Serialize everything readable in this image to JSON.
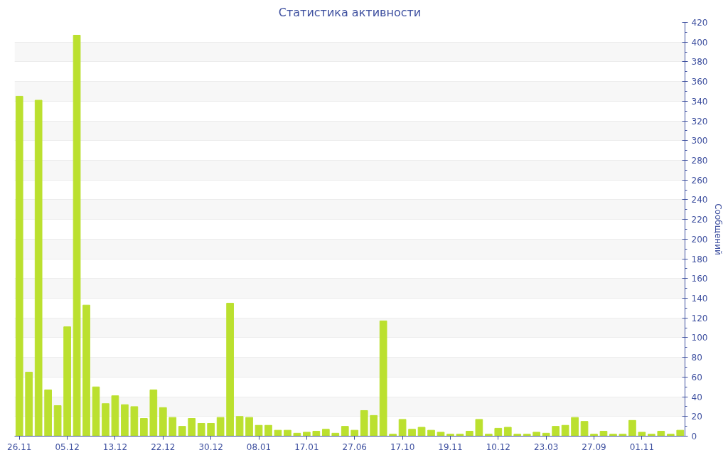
{
  "chart_data": {
    "type": "bar",
    "title": "Статистика активности",
    "ylabel": "Сообщений",
    "categories": [
      "26.11",
      null,
      null,
      null,
      null,
      "05.12",
      null,
      null,
      null,
      null,
      "13.12",
      null,
      null,
      null,
      null,
      "22.12",
      null,
      null,
      null,
      null,
      "30.12",
      null,
      null,
      null,
      null,
      "08.01",
      null,
      null,
      null,
      null,
      "17.01",
      null,
      null,
      null,
      null,
      "27.06",
      null,
      null,
      null,
      null,
      "17.10",
      null,
      null,
      null,
      null,
      "19.11",
      null,
      null,
      null,
      null,
      "10.12",
      null,
      null,
      null,
      null,
      "23.03",
      null,
      null,
      null,
      null,
      "27.09",
      null,
      null,
      null,
      null,
      "01.11",
      null,
      null,
      null,
      null
    ],
    "values": [
      345,
      65,
      341,
      47,
      31,
      111,
      407,
      133,
      50,
      33,
      41,
      32,
      30,
      18,
      47,
      29,
      19,
      10,
      18,
      13,
      13,
      19,
      135,
      20,
      19,
      11,
      11,
      6,
      6,
      3,
      4,
      5,
      7,
      3,
      10,
      6,
      26,
      21,
      117,
      2,
      17,
      7,
      9,
      6,
      4,
      2,
      2,
      5,
      17,
      2,
      8,
      9,
      2,
      2,
      4,
      3,
      10,
      11,
      19,
      15,
      2,
      5,
      2,
      2,
      16,
      4,
      2,
      5,
      2,
      6
    ],
    "color": "#bbe02f",
    "ylim": [
      0,
      420
    ],
    "yticks": [
      0,
      20,
      40,
      60,
      80,
      100,
      120,
      140,
      160,
      180,
      200,
      220,
      240,
      260,
      280,
      300,
      320,
      340,
      360,
      380,
      400,
      420
    ],
    "grid": "y"
  }
}
